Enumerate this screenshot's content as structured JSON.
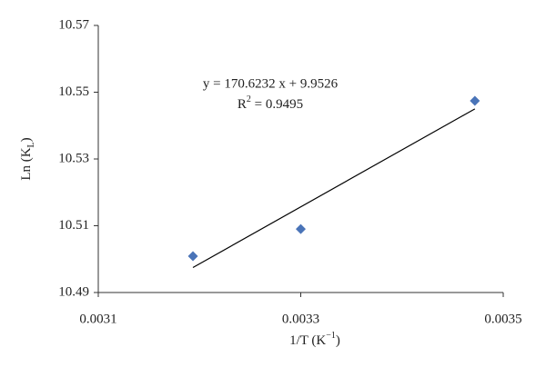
{
  "chart_data": {
    "type": "scatter",
    "x": [
      0.0031935,
      0.0033,
      0.003472
    ],
    "series": [
      {
        "color": "#4a74b8",
        "values": [
          10.5009,
          10.509,
          10.5474
        ]
      }
    ],
    "trendline": {
      "slope": 170.6232,
      "intercept": 9.9526,
      "color": "#000000"
    },
    "annotations": [
      "y = 170.6232 x + 9.9526",
      [
        "R",
        "2",
        " = 0.9495"
      ]
    ],
    "y_label": [
      "Ln (K",
      "L",
      ")"
    ],
    "x_label": [
      "1/T (K",
      "−1",
      ")"
    ],
    "xlim": [
      0.0031,
      0.0035
    ],
    "xticks": [
      0.0031,
      0.0033,
      0.0035
    ],
    "ylim": [
      10.49,
      10.57
    ],
    "yticks": [
      10.49,
      10.51,
      10.53,
      10.55,
      10.57
    ],
    "grid": false
  }
}
